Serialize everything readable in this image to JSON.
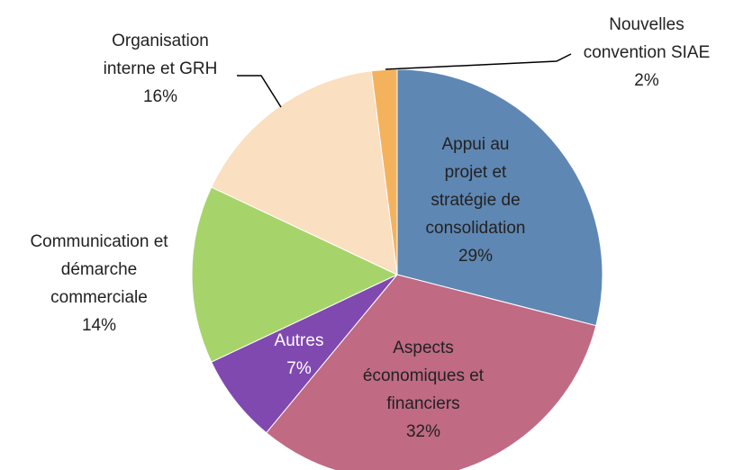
{
  "chart_data": {
    "type": "pie",
    "categories": [
      "Appui au\nprojet et\nstratégie de\nconsolidation",
      "Aspects\néconomiques et\nfinanciers",
      "Autres",
      "Communication et\ndémarche\ncommerciale",
      "Organisation\ninterne et GRH",
      "Nouvelles\nconvention SIAE"
    ],
    "values": [
      29,
      32,
      7,
      14,
      16,
      2
    ],
    "value_labels": [
      "29%",
      "32%",
      "7%",
      "14%",
      "16%",
      "2%"
    ],
    "colors": [
      "#5f87b3",
      "#c06a84",
      "#8049b0",
      "#a6d46a",
      "#fadfc0",
      "#f5b25d"
    ]
  }
}
